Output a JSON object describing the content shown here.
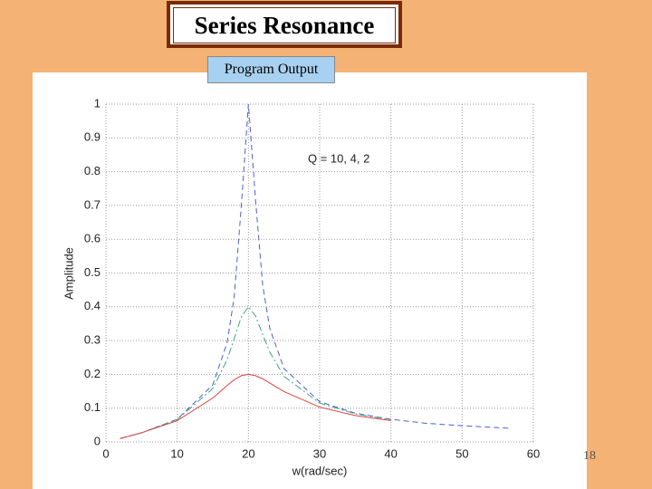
{
  "slide": {
    "title": "Series Resonance",
    "caption": "Program Output",
    "page_number": "18"
  },
  "chart_data": {
    "type": "line",
    "xlabel": "w(rad/sec)",
    "ylabel": "Amplitude",
    "annotation": "Q = 10, 4, 2",
    "x": [
      2,
      5,
      10,
      15,
      17,
      18,
      19,
      20,
      21,
      22,
      23,
      25,
      30,
      35,
      40,
      45,
      50,
      57
    ],
    "series": [
      {
        "name": "Q = 10",
        "color": "#4a5fd0",
        "dash": "6,4",
        "values": [
          0.01,
          0.027,
          0.067,
          0.169,
          0.293,
          0.428,
          0.698,
          1,
          0.716,
          0.464,
          0.336,
          0.217,
          0.119,
          0.085,
          0.067,
          0.055,
          0.048,
          0.04
        ]
      },
      {
        "name": "Q = 4",
        "color": "#3aa58a",
        "dash": "8,3,2,3",
        "values": [
          0.01,
          0.027,
          0.066,
          0.158,
          0.243,
          0.306,
          0.37,
          0.4,
          0.373,
          0.318,
          0.266,
          0.194,
          0.115,
          0.083,
          0.066,
          null,
          null,
          null
        ]
      },
      {
        "name": "Q = 2",
        "color": "#e04040",
        "dash": "none",
        "values": [
          0.01,
          0.027,
          0.063,
          0.13,
          0.167,
          0.184,
          0.196,
          0.2,
          0.196,
          0.187,
          0.174,
          0.149,
          0.103,
          0.078,
          0.063,
          null,
          null,
          null
        ]
      }
    ],
    "xlim": [
      0,
      60
    ],
    "xticks": [
      0,
      10,
      20,
      30,
      40,
      50,
      60
    ],
    "ylim": [
      0,
      1
    ],
    "yticks": [
      0,
      0.1,
      0.2,
      0.3,
      0.4,
      0.5,
      0.6,
      0.7,
      0.8,
      0.9,
      1
    ],
    "grid": true
  }
}
